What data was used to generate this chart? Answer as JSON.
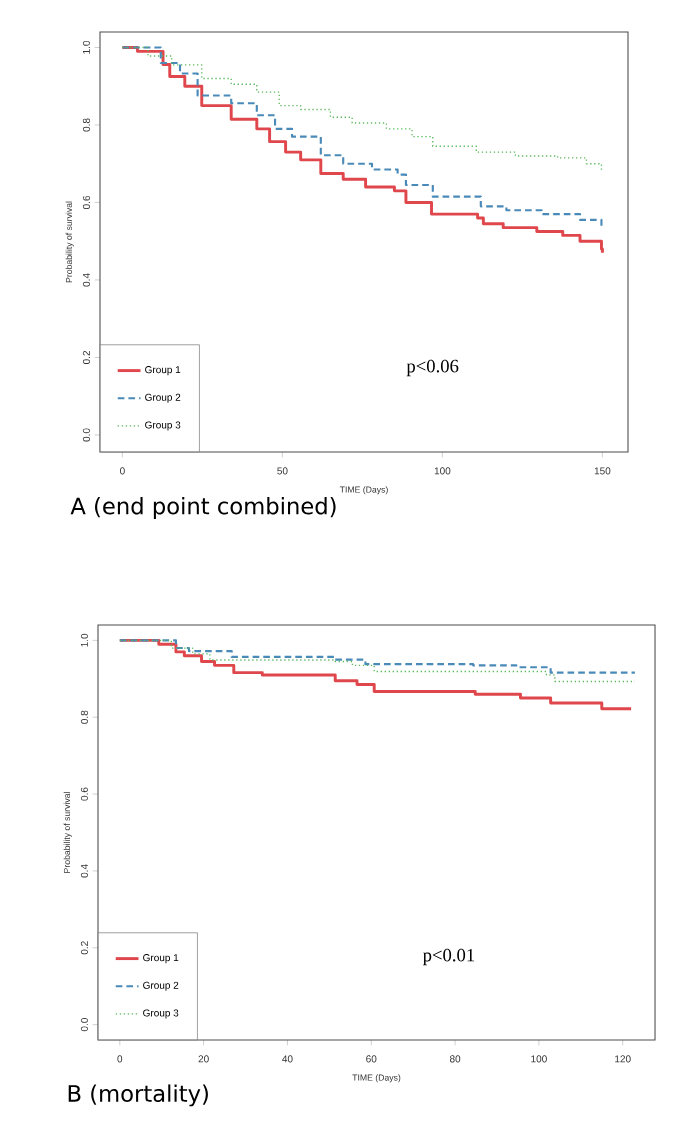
{
  "chart_data": [
    {
      "type": "step",
      "title": "A (end point combined)",
      "xlabel": "TIME (Days)",
      "ylabel": "Probability of survival",
      "annotations": [
        "p<0.06"
      ],
      "legend": "bottom left",
      "xlim": [
        -7,
        158
      ],
      "ylim": [
        -0.044,
        1.04
      ],
      "xticks": [
        0,
        50,
        100,
        150
      ],
      "yticks": [
        {
          "value": 0,
          "label": "0.0"
        },
        {
          "value": 0.2,
          "label": "0.2"
        },
        {
          "value": 0.4,
          "label": "0.4"
        },
        {
          "value": 0.6,
          "label": "0.6"
        },
        {
          "value": 0.8,
          "label": "0.8"
        },
        {
          "value": 1,
          "label": "1.0"
        }
      ],
      "series": [
        {
          "name": "Group 1",
          "color": "#e0474c",
          "line_style": "solid",
          "x": [
            0,
            4.7,
            12.7,
            14.8,
            19.5,
            24.8,
            34,
            42,
            46,
            51,
            55.7,
            62,
            69,
            76,
            85,
            88.6,
            96.6,
            111,
            112.8,
            119,
            129.5,
            137.6,
            143,
            149.7,
            150
          ],
          "values": [
            1.0,
            0.99,
            0.956,
            0.925,
            0.9,
            0.85,
            0.815,
            0.79,
            0.757,
            0.73,
            0.71,
            0.675,
            0.66,
            0.64,
            0.63,
            0.6,
            0.57,
            0.56,
            0.545,
            0.535,
            0.525,
            0.515,
            0.5,
            0.48,
            0.47
          ]
        },
        {
          "name": "Group 2",
          "color": "#4a8ab8",
          "line_style": "dashed",
          "x": [
            0,
            12,
            18,
            23.5,
            34,
            42,
            47.7,
            53,
            62,
            69,
            78,
            86,
            88.6,
            97,
            112,
            120,
            131,
            143,
            149.7
          ],
          "values": [
            1.0,
            0.96,
            0.933,
            0.876,
            0.856,
            0.825,
            0.79,
            0.77,
            0.722,
            0.7,
            0.685,
            0.672,
            0.645,
            0.615,
            0.59,
            0.58,
            0.57,
            0.555,
            0.54
          ]
        },
        {
          "name": "Group 3",
          "color": "#5cb85c",
          "line_style": "dotted",
          "x": [
            0,
            8,
            15.4,
            24.8,
            34,
            42,
            49,
            55.7,
            65,
            71.8,
            82.5,
            90.5,
            97,
            110.6,
            122.8,
            136,
            145,
            149.7
          ],
          "values": [
            1.0,
            0.978,
            0.955,
            0.92,
            0.905,
            0.885,
            0.85,
            0.84,
            0.82,
            0.805,
            0.79,
            0.77,
            0.745,
            0.73,
            0.72,
            0.715,
            0.7,
            0.68
          ]
        }
      ]
    },
    {
      "type": "step",
      "title": "B (mortality)",
      "xlabel": "TIME (Days)",
      "ylabel": "Probability of survival",
      "annotations": [
        "p<0.01"
      ],
      "legend": "bottom left",
      "xlim": [
        -5.2,
        127.7
      ],
      "ylim": [
        -0.04,
        1.04
      ],
      "xticks": [
        0,
        20,
        40,
        60,
        80,
        100,
        120
      ],
      "yticks": [
        {
          "value": 0,
          "label": "0.0"
        },
        {
          "value": 0.2,
          "label": "0.2"
        },
        {
          "value": 0.4,
          "label": "0.4"
        },
        {
          "value": 0.6,
          "label": "0.6"
        },
        {
          "value": 0.8,
          "label": "0.8"
        },
        {
          "value": 1,
          "label": "1.0"
        }
      ],
      "series": [
        {
          "name": "Group 1",
          "color": "#e0474c",
          "line_style": "solid",
          "x": [
            0,
            9.3,
            13.4,
            15.4,
            19.5,
            22.6,
            27.2,
            34,
            51.4,
            56.6,
            60.7,
            84.8,
            95.6,
            102.8,
            115,
            122
          ],
          "values": [
            1.0,
            0.99,
            0.97,
            0.96,
            0.945,
            0.935,
            0.916,
            0.91,
            0.895,
            0.885,
            0.867,
            0.86,
            0.85,
            0.837,
            0.822,
            0.822
          ]
        },
        {
          "name": "Group 2",
          "color": "#4a8ab8",
          "line_style": "dashed",
          "x": [
            0,
            13.4,
            16.5,
            26.7,
            51.4,
            58.6,
            84.3,
            94.6,
            102.8,
            122.9
          ],
          "values": [
            1.0,
            0.98,
            0.972,
            0.957,
            0.95,
            0.938,
            0.935,
            0.93,
            0.916,
            0.916
          ]
        },
        {
          "name": "Group 3",
          "color": "#5cb85c",
          "line_style": "dotted",
          "x": [
            0,
            12.3,
            17.4,
            21.5,
            51.4,
            55.5,
            60.7,
            84.3,
            101.8,
            103.8,
            122.9
          ],
          "values": [
            1.0,
            0.98,
            0.965,
            0.949,
            0.945,
            0.935,
            0.919,
            0.919,
            0.91,
            0.893,
            0.893
          ]
        }
      ]
    }
  ]
}
